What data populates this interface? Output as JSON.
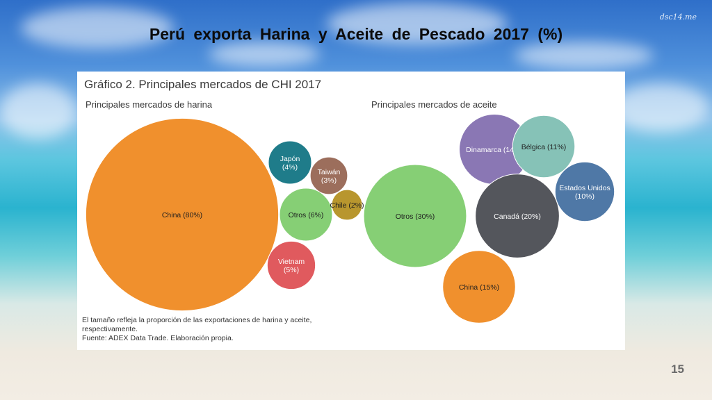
{
  "slide": {
    "title": "Perú  exporta  Harina  y  Aceite  de  Pescado  2017  (%)",
    "watermark": "dsc14.me",
    "page_number": "15"
  },
  "chart_data": {
    "type": "bubble",
    "title": "Gráfico 2. Principales mercados de CHI 2017",
    "panels": [
      {
        "subtitle": "Principales mercados de harina",
        "bubbles": [
          {
            "country": "China",
            "value": 80,
            "label": "China (80%)",
            "color": "#f0902d"
          },
          {
            "country": "Japón",
            "value": 4,
            "label": "Japón (4%)",
            "color": "#1f7c8a"
          },
          {
            "country": "Taiwán",
            "value": 3,
            "label": "Taiwán (3%)",
            "color": "#9c6e5c"
          },
          {
            "country": "Otros",
            "value": 6,
            "label": "Otros (6%)",
            "color": "#86cf75"
          },
          {
            "country": "Chile",
            "value": 2,
            "label": "Chile (2%)",
            "color": "#b8962e"
          },
          {
            "country": "Vietnam",
            "value": 5,
            "label": "Vietnam (5%)",
            "color": "#e05a5e"
          }
        ]
      },
      {
        "subtitle": "Principales mercados de aceite",
        "bubbles": [
          {
            "country": "Dinamarca",
            "value": 14,
            "label": "Dinamarca (14%)",
            "color": "#8a77b4"
          },
          {
            "country": "Bélgica",
            "value": 11,
            "label": "Bélgica (11%)",
            "color": "#86c2b7"
          },
          {
            "country": "Estados Unidos",
            "value": 10,
            "label": "Estados Unidos (10%)",
            "color": "#4f78a6"
          },
          {
            "country": "Otros",
            "value": 30,
            "label": "Otros (30%)",
            "color": "#86cf75"
          },
          {
            "country": "Canadá",
            "value": 20,
            "label": "Canadá (20%)",
            "color": "#54565c"
          },
          {
            "country": "China",
            "value": 15,
            "label": "China (15%)",
            "color": "#f0902d"
          }
        ]
      }
    ],
    "note": "El tamaño refleja la proporción de las exportaciones de harina y aceite, respectivamente.",
    "source": "Fuente: ADEX Data Trade. Elaboración propia."
  }
}
